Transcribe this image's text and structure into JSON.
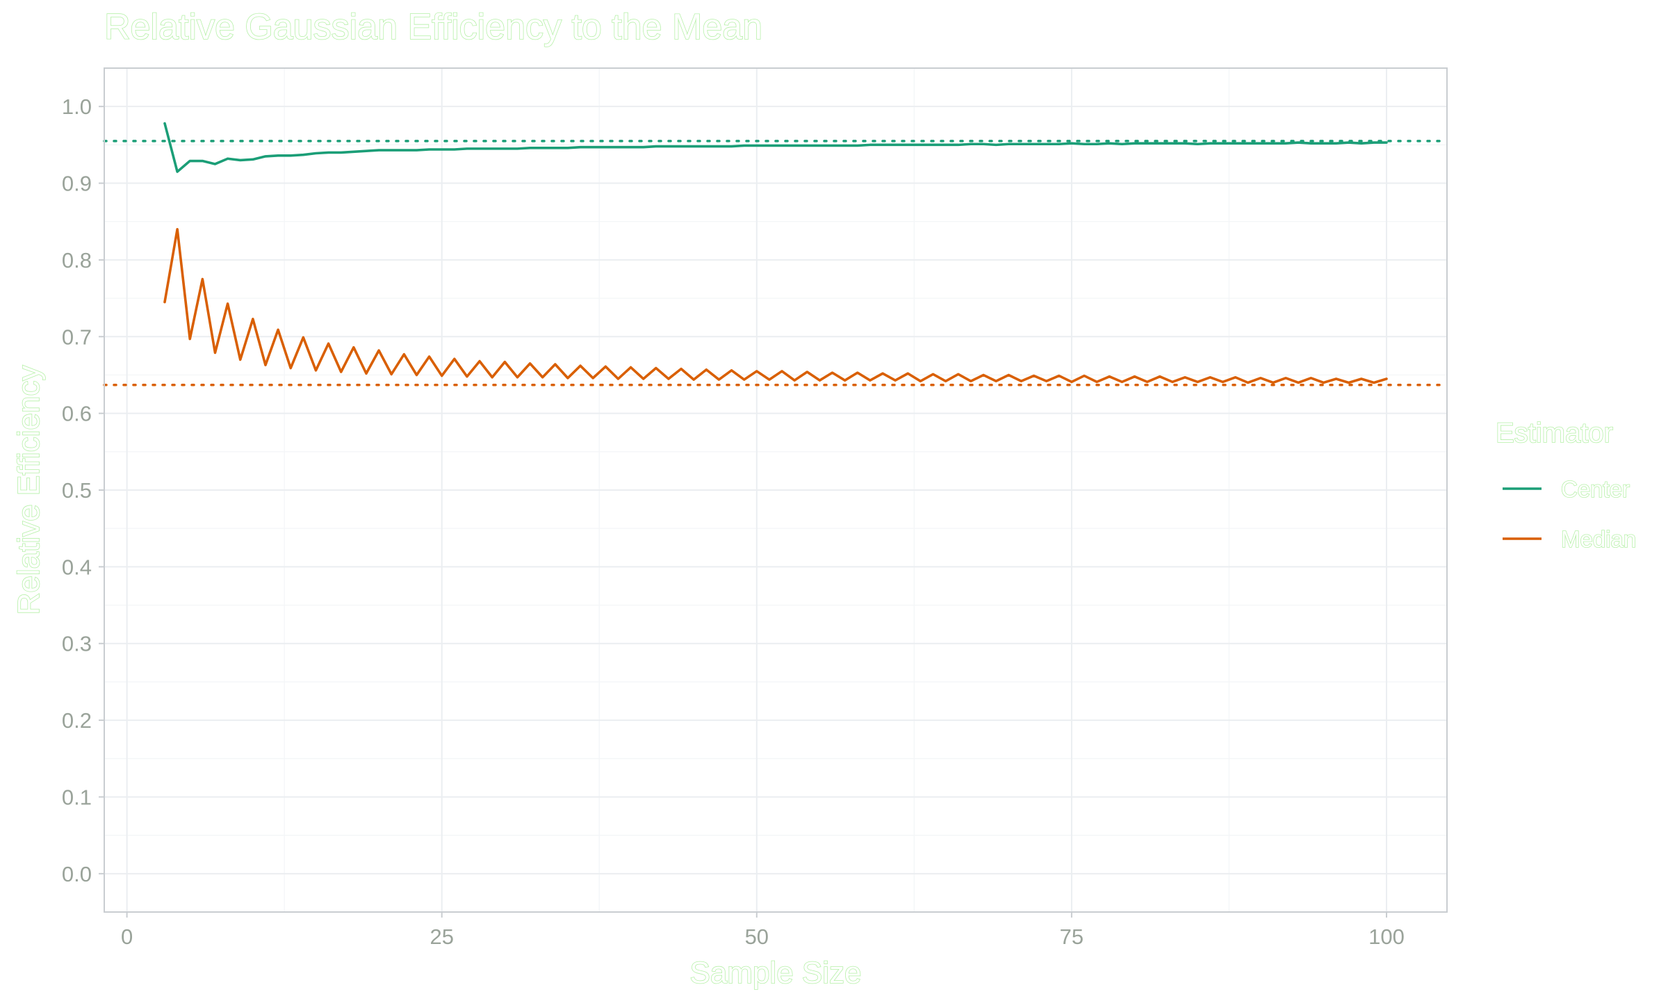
{
  "chart_data": {
    "type": "line",
    "title": "Relative Gaussian Efficiency to the Mean",
    "xlabel": "Sample Size",
    "ylabel": "Relative Efficiency",
    "xlim": [
      -1.8,
      104.8
    ],
    "ylim": [
      -0.05,
      1.05
    ],
    "x_ticks": [
      "0",
      "25",
      "50",
      "75",
      "100"
    ],
    "y_ticks": [
      "0.0",
      "0.1",
      "0.2",
      "0.3",
      "0.4",
      "0.5",
      "0.6",
      "0.7",
      "0.8",
      "0.9",
      "1.0"
    ],
    "grid": true,
    "legend": {
      "title": "Estimator",
      "position": "right"
    },
    "series": [
      {
        "name": "Center",
        "color": "#1b9e77",
        "x_start": 3,
        "values": [
          0.978,
          0.915,
          0.929,
          0.929,
          0.925,
          0.932,
          0.93,
          0.931,
          0.935,
          0.936,
          0.936,
          0.937,
          0.939,
          0.94,
          0.94,
          0.941,
          0.942,
          0.943,
          0.943,
          0.943,
          0.943,
          0.944,
          0.944,
          0.944,
          0.945,
          0.945,
          0.945,
          0.945,
          0.945,
          0.946,
          0.946,
          0.946,
          0.946,
          0.947,
          0.947,
          0.947,
          0.947,
          0.947,
          0.947,
          0.948,
          0.948,
          0.948,
          0.948,
          0.948,
          0.948,
          0.948,
          0.949,
          0.949,
          0.949,
          0.949,
          0.949,
          0.949,
          0.949,
          0.949,
          0.949,
          0.949,
          0.95,
          0.95,
          0.95,
          0.95,
          0.95,
          0.95,
          0.95,
          0.95,
          0.951,
          0.951,
          0.95,
          0.951,
          0.951,
          0.951,
          0.951,
          0.951,
          0.952,
          0.951,
          0.951,
          0.952,
          0.951,
          0.952,
          0.952,
          0.952,
          0.952,
          0.952,
          0.951,
          0.952,
          0.952,
          0.952,
          0.952,
          0.952,
          0.952,
          0.952,
          0.953,
          0.952,
          0.952,
          0.952,
          0.953,
          0.952,
          0.953,
          0.953
        ],
        "reference_value": 0.955
      },
      {
        "name": "Median",
        "color": "#d95f02",
        "x_start": 3,
        "values": [
          0.745,
          0.84,
          0.697,
          0.775,
          0.679,
          0.743,
          0.67,
          0.723,
          0.663,
          0.709,
          0.659,
          0.699,
          0.656,
          0.691,
          0.654,
          0.686,
          0.652,
          0.682,
          0.651,
          0.677,
          0.65,
          0.674,
          0.649,
          0.671,
          0.648,
          0.668,
          0.647,
          0.667,
          0.647,
          0.665,
          0.647,
          0.664,
          0.646,
          0.662,
          0.646,
          0.661,
          0.645,
          0.66,
          0.645,
          0.659,
          0.645,
          0.658,
          0.644,
          0.657,
          0.644,
          0.656,
          0.644,
          0.655,
          0.644,
          0.655,
          0.643,
          0.654,
          0.643,
          0.653,
          0.643,
          0.653,
          0.643,
          0.652,
          0.643,
          0.652,
          0.642,
          0.651,
          0.642,
          0.651,
          0.642,
          0.65,
          0.642,
          0.65,
          0.642,
          0.649,
          0.642,
          0.649,
          0.641,
          0.649,
          0.641,
          0.648,
          0.641,
          0.648,
          0.641,
          0.648,
          0.641,
          0.647,
          0.641,
          0.647,
          0.641,
          0.647,
          0.64,
          0.646,
          0.64,
          0.646,
          0.64,
          0.646,
          0.64,
          0.645,
          0.64,
          0.645,
          0.64,
          0.645
        ],
        "reference_value": 0.637
      }
    ]
  }
}
